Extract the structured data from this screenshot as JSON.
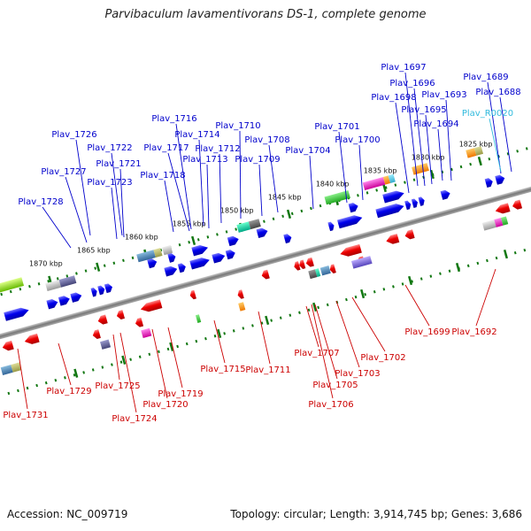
{
  "title": "Parvibaculum lavamentivorans DS-1, complete genome",
  "footer": {
    "accession": "Accession: NC_009719",
    "topology": "Topology: circular; Length: 3,914,745 bp; Genes: 3,686"
  },
  "colors": {
    "forward_label": "#0000cc",
    "reverse_label": "#cc0000",
    "rna_label": "#33bbdd",
    "forward_gene": "#0000ee",
    "reverse_gene": "#ee0000",
    "axis": "#888888",
    "tick": "#117711"
  },
  "scale": [
    {
      "label": "1870 kbp"
    },
    {
      "label": "1865 kbp"
    },
    {
      "label": "1860 kbp"
    },
    {
      "label": "1855 kbp"
    },
    {
      "label": "1850 kbp"
    },
    {
      "label": "1845 kbp"
    },
    {
      "label": "1840 kbp"
    },
    {
      "label": "1835 kbp"
    },
    {
      "label": "1830 kbp"
    },
    {
      "label": "1825 kbp"
    }
  ],
  "forward_labels": [
    {
      "text": "Plav_1728"
    },
    {
      "text": "Plav_1727"
    },
    {
      "text": "Plav_1726"
    },
    {
      "text": "Plav_1723"
    },
    {
      "text": "Plav_1721"
    },
    {
      "text": "Plav_1722"
    },
    {
      "text": "Plav_1718"
    },
    {
      "text": "Plav_1717"
    },
    {
      "text": "Plav_1716"
    },
    {
      "text": "Plav_1714"
    },
    {
      "text": "Plav_1713"
    },
    {
      "text": "Plav_1712"
    },
    {
      "text": "Plav_1710"
    },
    {
      "text": "Plav_1709"
    },
    {
      "text": "Plav_1708"
    },
    {
      "text": "Plav_1704"
    },
    {
      "text": "Plav_1701"
    },
    {
      "text": "Plav_1700"
    },
    {
      "text": "Plav_1698"
    },
    {
      "text": "Plav_1697"
    },
    {
      "text": "Plav_1696"
    },
    {
      "text": "Plav_1695"
    },
    {
      "text": "Plav_1694"
    },
    {
      "text": "Plav_1693"
    },
    {
      "text": "Plav_1689"
    },
    {
      "text": "Plav_1688"
    }
  ],
  "rna_labels": [
    {
      "text": "Plav_R0020"
    }
  ],
  "reverse_labels": [
    {
      "text": "Plav_1731"
    },
    {
      "text": "Plav_1729"
    },
    {
      "text": "Plav_1725"
    },
    {
      "text": "Plav_1724"
    },
    {
      "text": "Plav_1720"
    },
    {
      "text": "Plav_1719"
    },
    {
      "text": "Plav_1715"
    },
    {
      "text": "Plav_1711"
    },
    {
      "text": "Plav_1707"
    },
    {
      "text": "Plav_1705"
    },
    {
      "text": "Plav_1706"
    },
    {
      "text": "Plav_1703"
    },
    {
      "text": "Plav_1702"
    },
    {
      "text": "Plav_1699"
    },
    {
      "text": "Plav_1692"
    }
  ]
}
